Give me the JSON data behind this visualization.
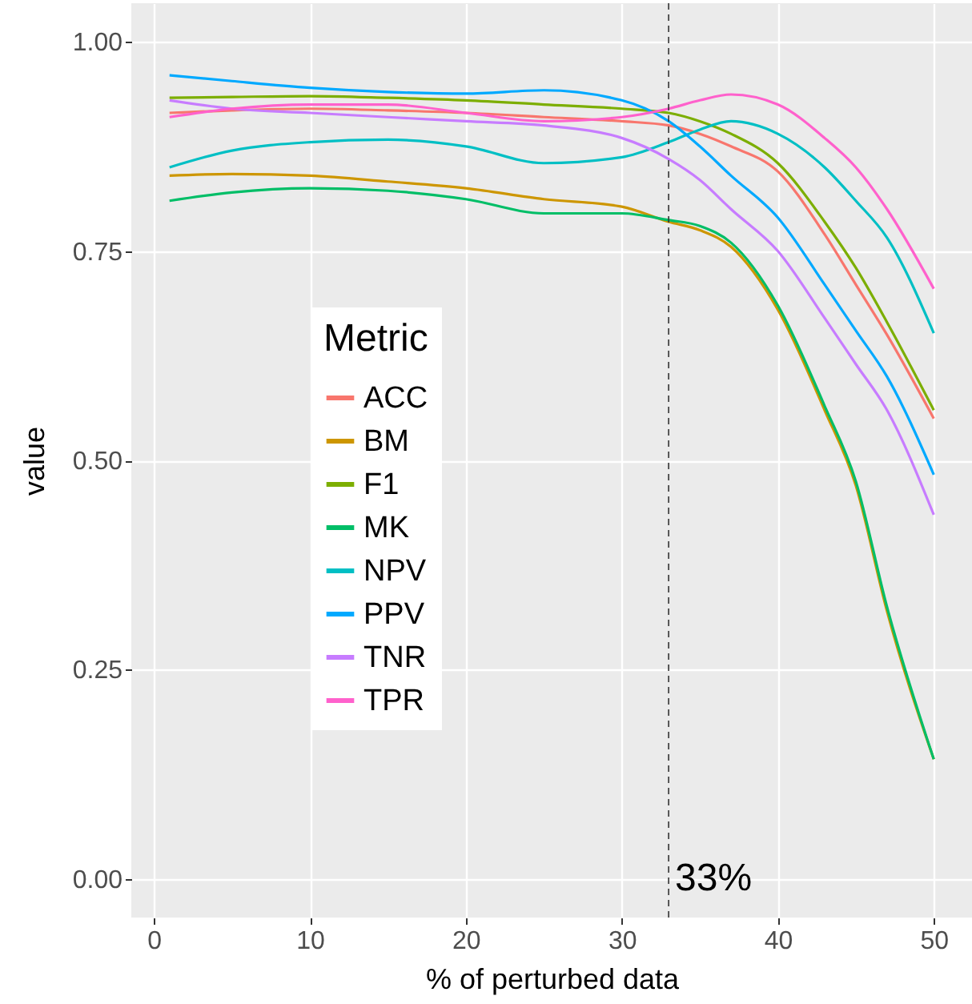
{
  "chart_data": {
    "type": "line",
    "xlabel": "% of perturbed data",
    "ylabel": "value",
    "legend_title": "Metric",
    "legend": "left",
    "grid": true,
    "marker": "none",
    "line_style": "solid",
    "x": [
      1,
      5,
      10,
      15,
      20,
      25,
      30,
      33,
      35,
      37,
      40,
      43,
      45,
      47,
      50
    ],
    "xlim": [
      -1.45,
      52.45
    ],
    "xticks": [
      0,
      10,
      20,
      30,
      40,
      50
    ],
    "ylim": [
      -0.046,
      1.046
    ],
    "yticks": [
      {
        "value": 0,
        "label": "0.00"
      },
      {
        "value": 0.25,
        "label": "0.25"
      },
      {
        "value": 0.5,
        "label": "0.50"
      },
      {
        "value": 0.75,
        "label": "0.75"
      },
      {
        "value": 1,
        "label": "1.00"
      }
    ],
    "ref_lines": [
      {
        "axis": "x",
        "value": 33,
        "label": "33%",
        "line_style": "dashed",
        "color": "#333333"
      }
    ],
    "series": [
      {
        "name": "ACC",
        "color": "#f8766d",
        "values": [
          0.915,
          0.918,
          0.92,
          0.918,
          0.915,
          0.91,
          0.905,
          0.9,
          0.89,
          0.875,
          0.845,
          0.77,
          0.71,
          0.65,
          0.55
        ]
      },
      {
        "name": "BM",
        "color": "#cd9600",
        "values": [
          0.84,
          0.842,
          0.84,
          0.833,
          0.825,
          0.812,
          0.803,
          0.785,
          0.775,
          0.755,
          0.68,
          0.56,
          0.47,
          0.32,
          0.143
        ]
      },
      {
        "name": "F1",
        "color": "#7cae00",
        "values": [
          0.933,
          0.934,
          0.935,
          0.933,
          0.93,
          0.925,
          0.92,
          0.915,
          0.905,
          0.89,
          0.855,
          0.785,
          0.73,
          0.665,
          0.56
        ]
      },
      {
        "name": "MK",
        "color": "#00be67",
        "values": [
          0.81,
          0.82,
          0.825,
          0.822,
          0.812,
          0.795,
          0.795,
          0.787,
          0.78,
          0.76,
          0.685,
          0.565,
          0.475,
          0.325,
          0.143
        ]
      },
      {
        "name": "NPV",
        "color": "#00bfc4",
        "values": [
          0.85,
          0.87,
          0.88,
          0.883,
          0.875,
          0.855,
          0.862,
          0.88,
          0.895,
          0.905,
          0.89,
          0.85,
          0.81,
          0.766,
          0.652
        ]
      },
      {
        "name": "PPV",
        "color": "#00a9ff",
        "values": [
          0.96,
          0.953,
          0.945,
          0.94,
          0.938,
          0.942,
          0.93,
          0.905,
          0.875,
          0.84,
          0.79,
          0.71,
          0.655,
          0.6,
          0.483
        ]
      },
      {
        "name": "TNR",
        "color": "#c77cff",
        "values": [
          0.93,
          0.92,
          0.915,
          0.91,
          0.905,
          0.9,
          0.885,
          0.86,
          0.835,
          0.8,
          0.75,
          0.67,
          0.615,
          0.56,
          0.435
        ]
      },
      {
        "name": "TPR",
        "color": "#ff61cc",
        "values": [
          0.91,
          0.92,
          0.925,
          0.925,
          0.915,
          0.905,
          0.91,
          0.92,
          0.93,
          0.937,
          0.925,
          0.885,
          0.85,
          0.8,
          0.705
        ]
      }
    ]
  }
}
